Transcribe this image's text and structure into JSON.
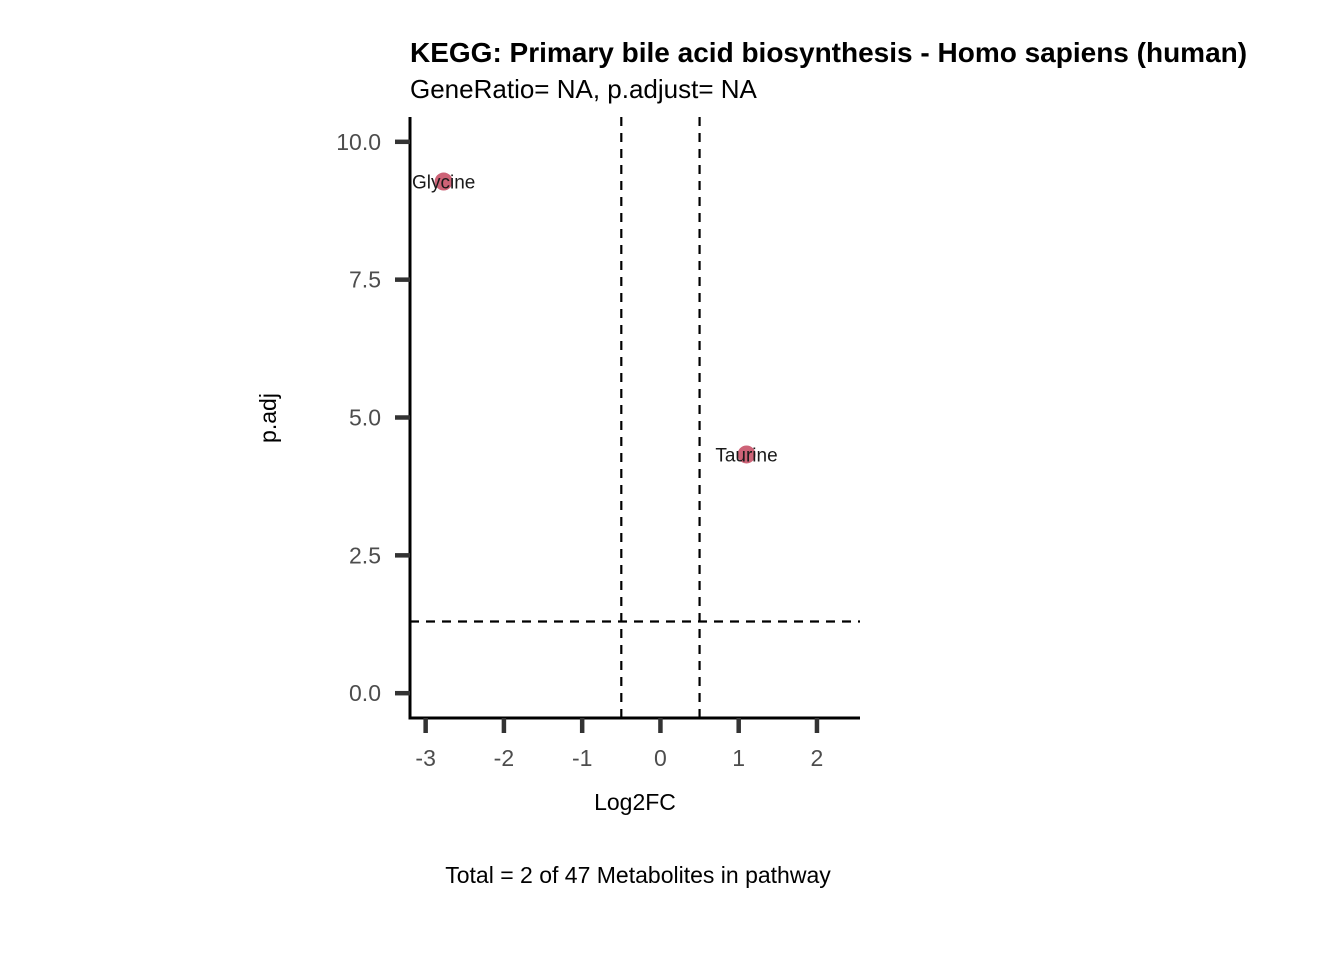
{
  "chart_data": {
    "type": "scatter",
    "title": "KEGG: Primary bile acid biosynthesis - Homo sapiens (human)",
    "subtitle": "GeneRatio= NA, p.adjust= NA",
    "xlabel": "Log2FC",
    "ylabel": "p.adj",
    "caption": "Total = 2 of 47 Metabolites in pathway",
    "xlim": [
      -3.2,
      2.55
    ],
    "ylim": [
      -0.45,
      10.45
    ],
    "x_ticks": [
      -3,
      -2,
      -1,
      0,
      1,
      2
    ],
    "x_tick_labels": [
      "-3",
      "-2",
      "-1",
      "0",
      "1",
      "2"
    ],
    "y_ticks": [
      0,
      2.5,
      5,
      7.5,
      10
    ],
    "y_tick_labels": [
      "0.0",
      "2.5",
      "5.0",
      "7.5",
      "10.0"
    ],
    "grid": false,
    "legend": "none",
    "point_color": "#C9566B",
    "series": [
      {
        "points": [
          {
            "label": "Glycine",
            "x": -2.77,
            "y": 9.28
          },
          {
            "label": "Taurine",
            "x": 1.1,
            "y": 4.33
          }
        ]
      }
    ],
    "reference_lines": {
      "vertical": [
        -0.5,
        0.5
      ],
      "horizontal": [
        1.3
      ]
    }
  }
}
